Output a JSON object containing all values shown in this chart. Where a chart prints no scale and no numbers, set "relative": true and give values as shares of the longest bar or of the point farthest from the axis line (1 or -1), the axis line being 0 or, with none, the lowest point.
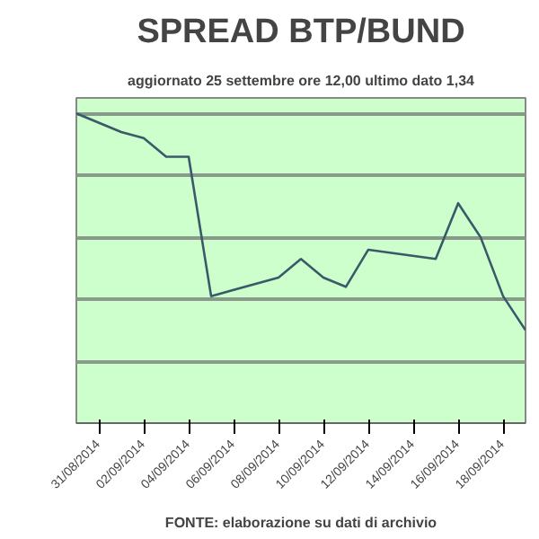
{
  "chart_data": {
    "type": "line",
    "title": "SPREAD BTP/BUND",
    "subtitle": "aggiornato 25 settembre ore 12,00 ultimo dato 1,34",
    "relative": true,
    "x": [
      "2014-08-30",
      "2014-09-01",
      "2014-09-02",
      "2014-09-03",
      "2014-09-04",
      "2014-09-05",
      "2014-09-08",
      "2014-09-09",
      "2014-09-10",
      "2014-09-11",
      "2014-09-12",
      "2014-09-15",
      "2014-09-16",
      "2014-09-17",
      "2014-09-18",
      "2014-09-19"
    ],
    "series": [
      {
        "color": "#3a5a6a",
        "values": [
          1,
          0.94,
          0.92,
          0.86,
          0.86,
          0.41,
          0.47,
          0.53,
          0.47,
          0.44,
          0.56,
          0.53,
          0.71,
          0.6,
          0.41,
          0.3
        ]
      }
    ],
    "xlim": [
      "2014-08-30",
      "2014-09-19"
    ],
    "xticks": [
      {
        "value": "2014-08-31",
        "label": "31/08/2014"
      },
      {
        "value": "2014-09-02",
        "label": "02/09/2014"
      },
      {
        "value": "2014-09-04",
        "label": "04/09/2014"
      },
      {
        "value": "2014-09-06",
        "label": "06/09/2014"
      },
      {
        "value": "2014-09-08",
        "label": "08/09/2014"
      },
      {
        "value": "2014-09-10",
        "label": "10/09/2014"
      },
      {
        "value": "2014-09-12",
        "label": "12/09/2014"
      },
      {
        "value": "2014-09-14",
        "label": "14/09/2014"
      },
      {
        "value": "2014-09-16",
        "label": "16/09/2014"
      },
      {
        "value": "2014-09-18",
        "label": "18/09/2014"
      }
    ],
    "grid": "y",
    "marker": "none",
    "line_style": "solid",
    "annotations": [
      "FONTE: elaborazione su dati di archivio"
    ]
  }
}
